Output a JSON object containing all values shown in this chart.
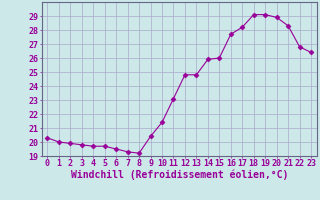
{
  "x": [
    0,
    1,
    2,
    3,
    4,
    5,
    6,
    7,
    8,
    9,
    10,
    11,
    12,
    13,
    14,
    15,
    16,
    17,
    18,
    19,
    20,
    21,
    22,
    23
  ],
  "y": [
    20.3,
    20.0,
    19.9,
    19.8,
    19.7,
    19.7,
    19.5,
    19.3,
    19.2,
    20.4,
    21.4,
    23.1,
    24.8,
    24.8,
    25.9,
    26.0,
    27.7,
    28.2,
    29.1,
    29.1,
    28.9,
    28.3,
    26.8,
    26.4
  ],
  "line_color": "#990099",
  "marker": "D",
  "marker_size": 2.5,
  "bg_color": "#cce8e8",
  "grid_color": "#aaaacc",
  "xlabel": "Windchill (Refroidissement éolien,°C)",
  "ylabel": "",
  "ylim": [
    19,
    30
  ],
  "xlim": [
    -0.5,
    23.5
  ],
  "yticks": [
    19,
    20,
    21,
    22,
    23,
    24,
    25,
    26,
    27,
    28,
    29
  ],
  "xticks": [
    0,
    1,
    2,
    3,
    4,
    5,
    6,
    7,
    8,
    9,
    10,
    11,
    12,
    13,
    14,
    15,
    16,
    17,
    18,
    19,
    20,
    21,
    22,
    23
  ],
  "xlabel_color": "#990099",
  "tick_color": "#990099",
  "tick_label_color": "#990099",
  "axis_color": "#666688",
  "xlabel_fontsize": 7.0,
  "tick_fontsize": 6.0
}
